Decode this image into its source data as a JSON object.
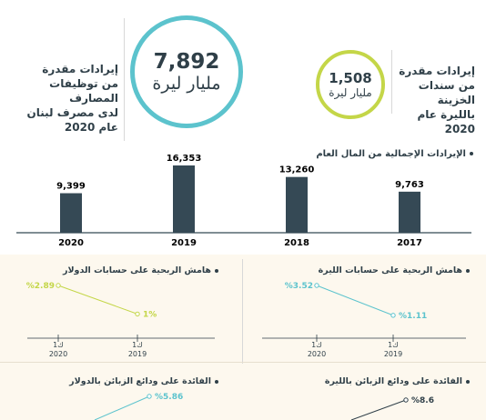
{
  "header": {
    "left_text_lines": [
      "إيرادات مقدرة",
      "من توظيفات المصارف",
      "لدى مصرف لبنان",
      "عام 2020"
    ],
    "big_value": "7,892",
    "big_unit": "مليار ليرة",
    "small_value": "1,508",
    "small_unit": "مليار ليرة",
    "right_text_lines": [
      "إيرادات مقدرة",
      "من سندات الخزينة",
      "بالليرة عام 2020"
    ]
  },
  "colors": {
    "teal": "#5cc3cd",
    "lime": "#c4d648",
    "bar": "#354955",
    "dark_text": "#2f3f48",
    "panel_bg": "#fdf8ee"
  },
  "chart_data": [
    {
      "type": "bar",
      "title": "الإيرادات الإجمالية من المال العام",
      "categories": [
        "2020",
        "2019",
        "2018",
        "2017"
      ],
      "values": [
        9399,
        16353,
        13260,
        9763
      ],
      "value_labels": [
        "9,399",
        "16,353",
        "13,260",
        "9,763"
      ],
      "ylim": [
        0,
        16000
      ]
    },
    {
      "type": "line",
      "title": "هامش الربحية على حسابات الدولار",
      "x": [
        "2020",
        "2019"
      ],
      "x_tick_labels": [
        "ك1 2020",
        "ك1 2019"
      ],
      "y": [
        2.89,
        1
      ],
      "point_labels": [
        "%2.89",
        "1%"
      ],
      "color": "#c4d648"
    },
    {
      "type": "line",
      "title": "هامش الربحية على حسابات الليرة",
      "x": [
        "2020",
        "2019"
      ],
      "x_tick_labels": [
        "ك1 2020",
        "ك1 2019"
      ],
      "y": [
        3.52,
        1.11
      ],
      "point_labels": [
        "%3.52",
        "%1.11"
      ],
      "color": "#5cc3cd"
    },
    {
      "type": "line",
      "title": "الفائدة على ودائع الزبائن بالدولار",
      "y": [
        5.86
      ],
      "point_labels": [
        "%5.86"
      ],
      "color": "#5cc3cd"
    },
    {
      "type": "line",
      "title": "الفائدة على ودائع الزبائن بالليرة",
      "y": [
        8.6
      ],
      "point_labels": [
        "%8.6"
      ],
      "color": "#2f3f48"
    }
  ]
}
